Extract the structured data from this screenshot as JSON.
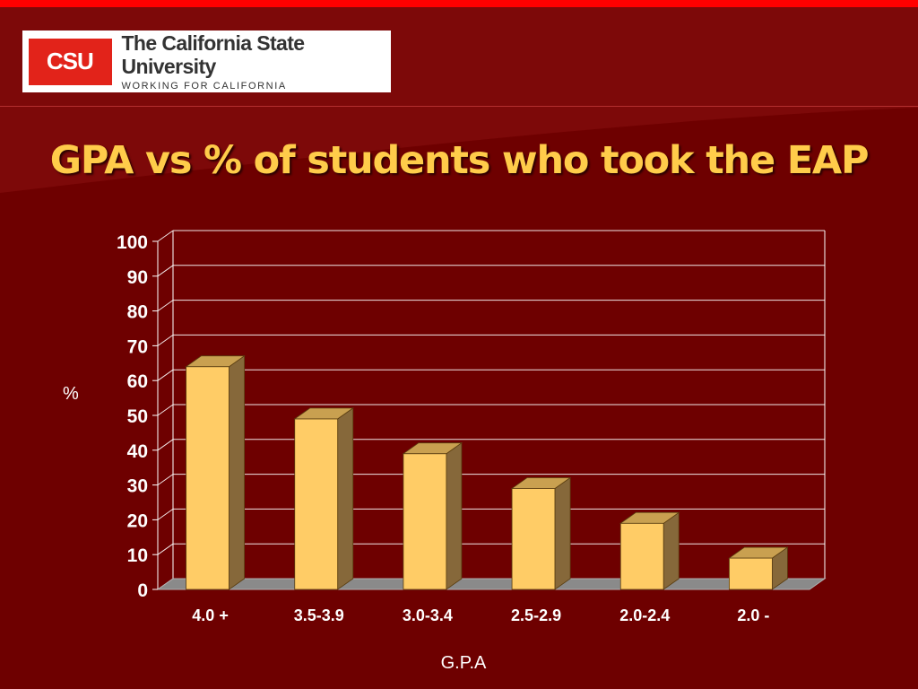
{
  "logo": {
    "mark": "CSU",
    "title": "The California State University",
    "tagline": "WORKING FOR CALIFORNIA"
  },
  "slide": {
    "title": "GPA vs % of students who took the EAP"
  },
  "colors": {
    "background": "#6e0000",
    "title": "#ffcc4a",
    "bar_front": "#ffcc66",
    "bar_side": "#86683a",
    "bar_top": "#c9a050",
    "floor": "#8a8a8a",
    "gridline": "#ffffff"
  },
  "chart_data": {
    "type": "bar",
    "style": "3d-column",
    "categories": [
      "4.0 +",
      "3.5-3.9",
      "3.0-3.4",
      "2.5-2.9",
      "2.0-2.4",
      "2.0 -"
    ],
    "values": [
      64,
      49,
      39,
      29,
      19,
      9
    ],
    "xlabel": "G.P.A",
    "ylabel": "%",
    "ylim": [
      0,
      100
    ],
    "yticks": [
      0,
      10,
      20,
      30,
      40,
      50,
      60,
      70,
      80,
      90,
      100
    ],
    "grid": true,
    "legend": "none"
  }
}
